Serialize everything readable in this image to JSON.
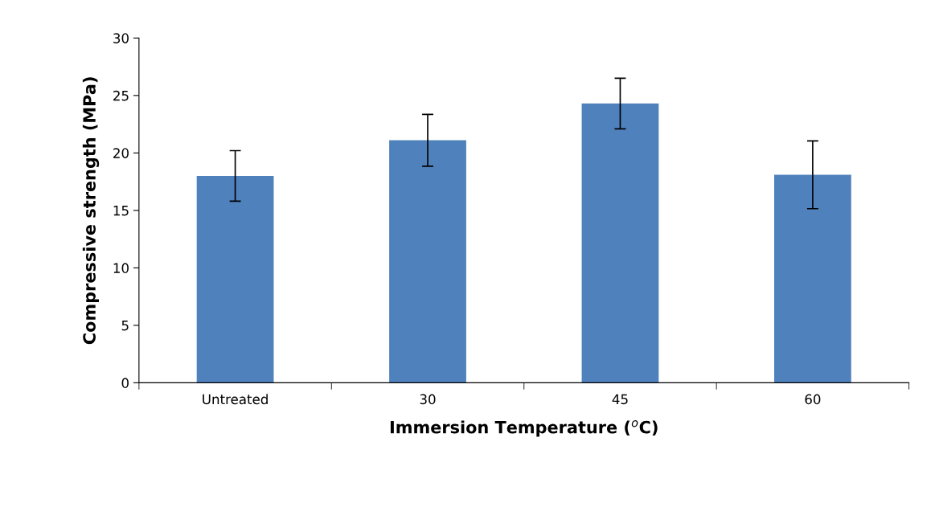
{
  "chart_data": {
    "type": "bar",
    "xlabel": "Immersion Temperature ($^{o}$C)",
    "ylabel": "Compressive strength (MPa)",
    "categories": [
      "Untreated",
      "30",
      "45",
      "60"
    ],
    "values": [
      18.0,
      21.1,
      24.3,
      18.1
    ],
    "errors": [
      2.2,
      2.25,
      2.2,
      2.95
    ],
    "color": "#4f81bd",
    "ylim": [
      0,
      30
    ],
    "yticks": [
      0,
      5,
      10,
      15,
      20,
      25,
      30
    ],
    "grid": false
  }
}
